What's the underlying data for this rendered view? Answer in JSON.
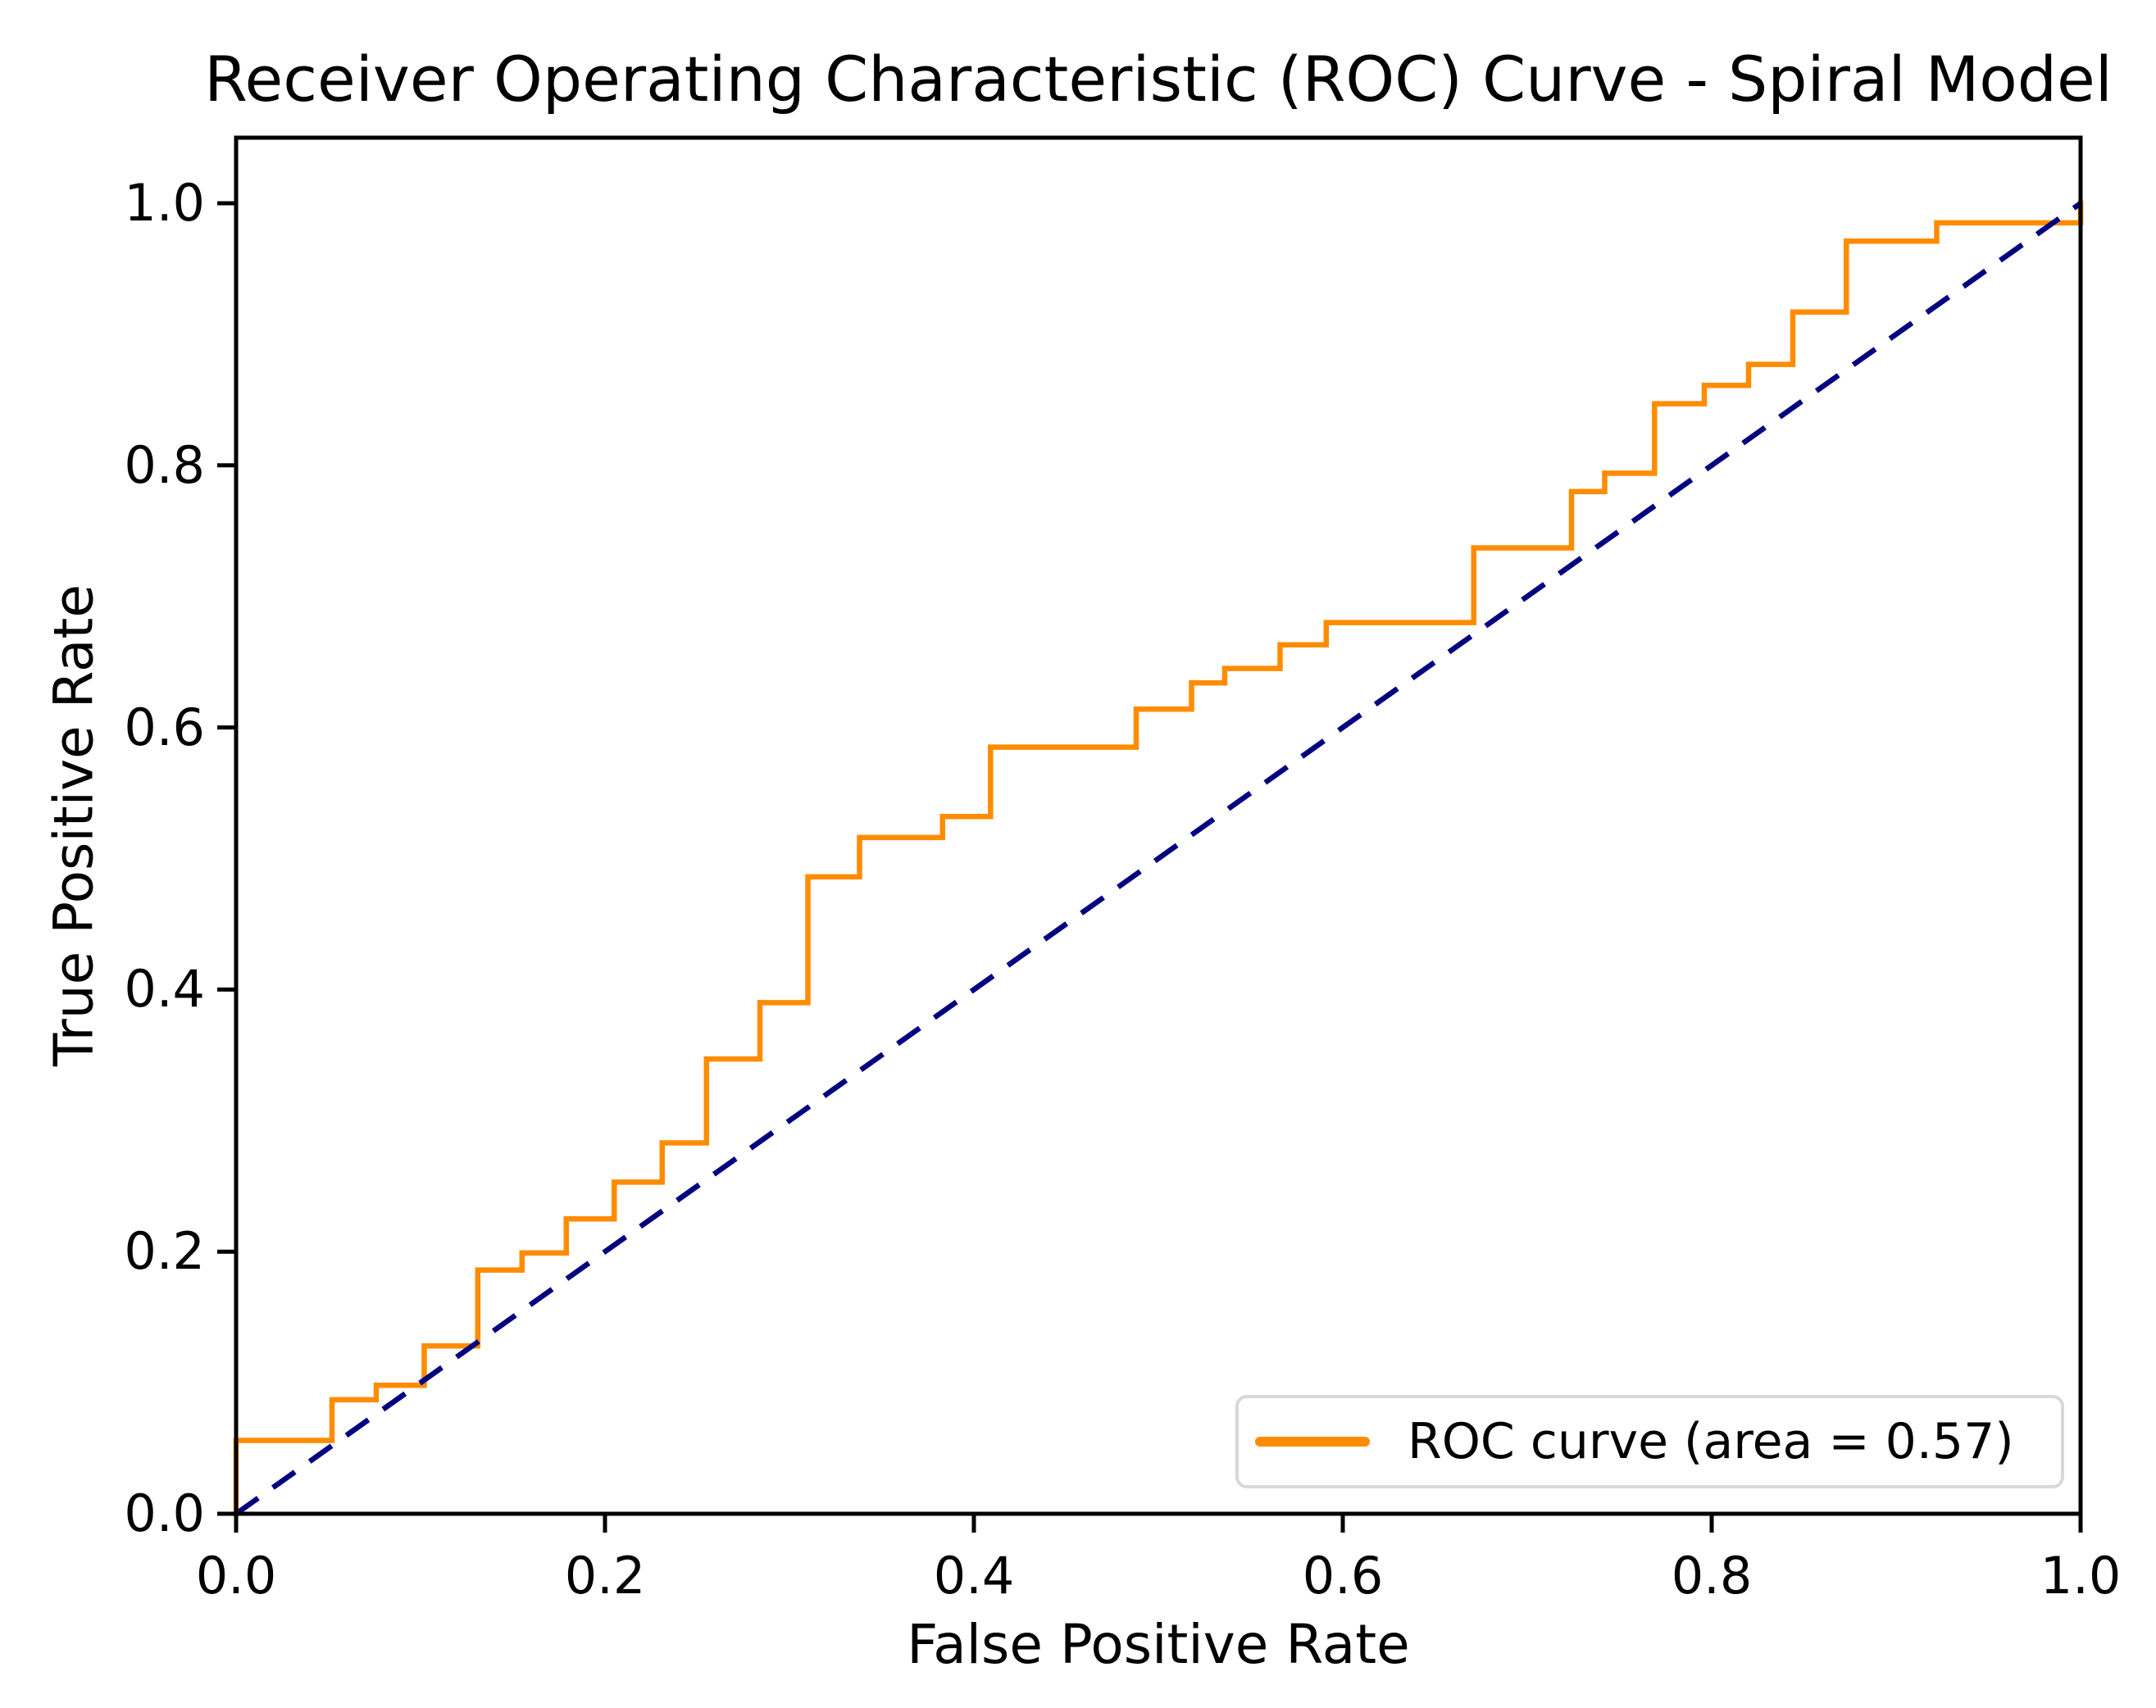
{
  "figure": {
    "background": "#ffffff",
    "frame_color": "#000000"
  },
  "chart_data": {
    "type": "line",
    "title": "Receiver Operating Characteristic (ROC) Curve - Spiral Model",
    "xlabel": "False Positive Rate",
    "ylabel": "True Positive Rate",
    "xlim": [
      0.0,
      1.0
    ],
    "ylim": [
      0.0,
      1.05
    ],
    "grid": false,
    "x_tick_values": [
      0.0,
      0.2,
      0.4,
      0.6,
      0.8,
      1.0
    ],
    "x_tick_labels": [
      "0.0",
      "0.2",
      "0.4",
      "0.6",
      "0.8",
      "1.0"
    ],
    "y_tick_values": [
      0.0,
      0.2,
      0.4,
      0.6,
      0.8,
      1.0
    ],
    "y_tick_labels": [
      "0.0",
      "0.2",
      "0.4",
      "0.6",
      "0.8",
      "1.0"
    ],
    "legend": {
      "position": "lower right",
      "entries": [
        {
          "label": "ROC curve (area = 0.57)",
          "color": "#ff8c00",
          "style": "solid"
        }
      ]
    },
    "series": [
      {
        "name": "ROC curve",
        "type": "step",
        "color": "#ff8c00",
        "linestyle": "solid",
        "auc": 0.57,
        "points": [
          [
            0,
            0
          ],
          [
            0,
            0.056
          ],
          [
            0.052,
            0.056
          ],
          [
            0.052,
            0.087
          ],
          [
            0.076,
            0.087
          ],
          [
            0.076,
            0.098
          ],
          [
            0.102,
            0.098
          ],
          [
            0.102,
            0.128
          ],
          [
            0.131,
            0.128
          ],
          [
            0.131,
            0.186
          ],
          [
            0.155,
            0.186
          ],
          [
            0.155,
            0.199
          ],
          [
            0.179,
            0.199
          ],
          [
            0.179,
            0.225
          ],
          [
            0.205,
            0.225
          ],
          [
            0.205,
            0.253
          ],
          [
            0.231,
            0.253
          ],
          [
            0.231,
            0.283
          ],
          [
            0.255,
            0.283
          ],
          [
            0.255,
            0.347
          ],
          [
            0.284,
            0.347
          ],
          [
            0.284,
            0.39
          ],
          [
            0.31,
            0.39
          ],
          [
            0.31,
            0.486
          ],
          [
            0.338,
            0.486
          ],
          [
            0.338,
            0.516
          ],
          [
            0.383,
            0.516
          ],
          [
            0.383,
            0.532
          ],
          [
            0.409,
            0.532
          ],
          [
            0.409,
            0.585
          ],
          [
            0.488,
            0.585
          ],
          [
            0.488,
            0.614
          ],
          [
            0.518,
            0.614
          ],
          [
            0.518,
            0.634
          ],
          [
            0.536,
            0.634
          ],
          [
            0.536,
            0.645
          ],
          [
            0.566,
            0.645
          ],
          [
            0.566,
            0.663
          ],
          [
            0.591,
            0.663
          ],
          [
            0.591,
            0.68
          ],
          [
            0.671,
            0.68
          ],
          [
            0.671,
            0.737
          ],
          [
            0.724,
            0.737
          ],
          [
            0.724,
            0.78
          ],
          [
            0.742,
            0.78
          ],
          [
            0.742,
            0.794
          ],
          [
            0.769,
            0.794
          ],
          [
            0.769,
            0.847
          ],
          [
            0.796,
            0.847
          ],
          [
            0.796,
            0.861
          ],
          [
            0.82,
            0.861
          ],
          [
            0.82,
            0.877
          ],
          [
            0.844,
            0.877
          ],
          [
            0.844,
            0.917
          ],
          [
            0.873,
            0.917
          ],
          [
            0.873,
            0.971
          ],
          [
            0.922,
            0.971
          ],
          [
            0.922,
            0.985
          ],
          [
            1,
            0.985
          ],
          [
            1,
            1
          ]
        ]
      },
      {
        "name": "chance diagonal",
        "type": "line",
        "color": "#000080",
        "linestyle": "dashed",
        "points": [
          [
            0,
            0
          ],
          [
            1,
            1
          ]
        ]
      }
    ]
  }
}
